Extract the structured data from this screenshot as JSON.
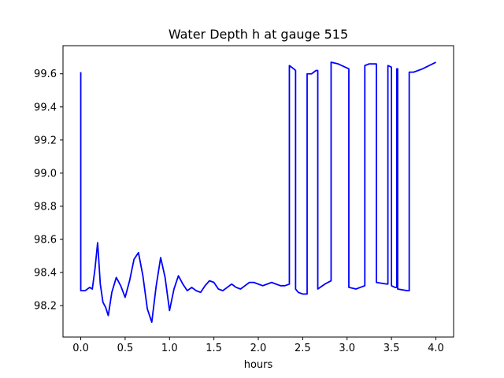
{
  "chart_data": {
    "type": "line",
    "title": "Water Depth h at gauge 515",
    "xlabel": "hours",
    "ylabel": "",
    "xlim": [
      -0.2,
      4.2
    ],
    "ylim": [
      98.01,
      99.77
    ],
    "xticks": [
      0.0,
      0.5,
      1.0,
      1.5,
      2.0,
      2.5,
      3.0,
      3.5,
      4.0
    ],
    "xtick_labels": [
      "0.0",
      "0.5",
      "1.0",
      "1.5",
      "2.0",
      "2.5",
      "3.0",
      "3.5",
      "4.0"
    ],
    "yticks": [
      98.2,
      98.4,
      98.6,
      98.8,
      99.0,
      99.2,
      99.4,
      99.6
    ],
    "ytick_labels": [
      "98.2",
      "98.4",
      "98.6",
      "98.8",
      "99.0",
      "99.2",
      "99.4",
      "99.6"
    ],
    "grid": false,
    "series": [
      {
        "color": "#0000ff",
        "x": [
          0.0,
          0.0,
          0.05,
          0.1,
          0.13,
          0.16,
          0.19,
          0.2,
          0.22,
          0.25,
          0.28,
          0.31,
          0.35,
          0.4,
          0.45,
          0.5,
          0.55,
          0.6,
          0.65,
          0.7,
          0.75,
          0.8,
          0.85,
          0.9,
          0.95,
          1.0,
          1.05,
          1.1,
          1.15,
          1.2,
          1.25,
          1.3,
          1.35,
          1.4,
          1.45,
          1.5,
          1.55,
          1.6,
          1.65,
          1.7,
          1.75,
          1.8,
          1.85,
          1.9,
          1.95,
          2.0,
          2.05,
          2.1,
          2.15,
          2.2,
          2.25,
          2.3,
          2.35,
          2.35,
          2.4,
          2.42,
          2.42,
          2.45,
          2.5,
          2.55,
          2.55,
          2.6,
          2.65,
          2.67,
          2.67,
          2.75,
          2.82,
          2.82,
          2.9,
          3.02,
          3.02,
          3.1,
          3.2,
          3.2,
          3.25,
          3.33,
          3.33,
          3.45,
          3.46,
          3.46,
          3.5,
          3.5,
          3.54,
          3.56,
          3.56,
          3.57,
          3.57,
          3.68,
          3.7,
          3.7,
          3.75,
          3.85,
          4.0
        ],
        "y": [
          99.61,
          98.29,
          98.29,
          98.31,
          98.3,
          98.42,
          98.58,
          98.5,
          98.33,
          98.22,
          98.19,
          98.14,
          98.28,
          98.37,
          98.32,
          98.25,
          98.35,
          98.48,
          98.52,
          98.38,
          98.18,
          98.1,
          98.32,
          98.49,
          98.37,
          98.17,
          98.3,
          98.38,
          98.33,
          98.29,
          98.31,
          98.29,
          98.28,
          98.32,
          98.35,
          98.34,
          98.3,
          98.29,
          98.31,
          98.33,
          98.31,
          98.3,
          98.32,
          98.34,
          98.34,
          98.33,
          98.32,
          98.33,
          98.34,
          98.33,
          98.32,
          98.32,
          98.33,
          99.65,
          99.63,
          99.62,
          98.3,
          98.28,
          98.27,
          98.27,
          99.6,
          99.6,
          99.62,
          99.62,
          98.3,
          98.33,
          98.35,
          99.67,
          99.66,
          99.63,
          98.31,
          98.3,
          98.32,
          99.65,
          99.66,
          99.66,
          98.34,
          98.33,
          98.33,
          99.65,
          99.64,
          98.32,
          98.31,
          98.31,
          99.63,
          99.63,
          98.3,
          98.29,
          98.29,
          99.61,
          99.61,
          99.63,
          99.67
        ]
      }
    ]
  }
}
